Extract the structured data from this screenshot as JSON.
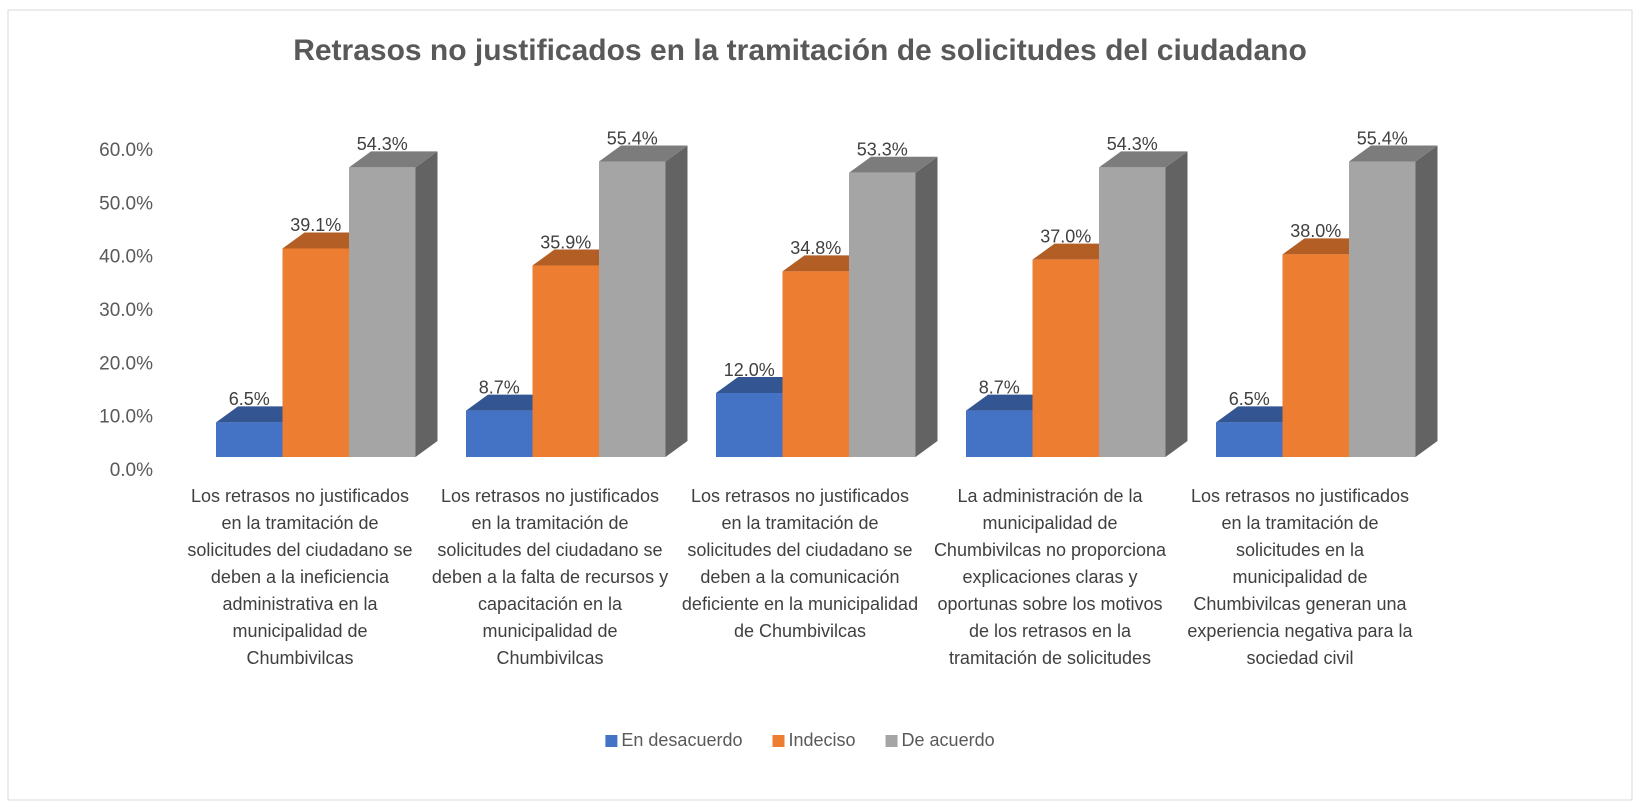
{
  "chart_data": {
    "type": "bar3d",
    "title": "Retrasos no justificados en la tramitación de solicitudes del ciudadano",
    "categories": [
      "Los retrasos no justificados en la tramitación de solicitudes del ciudadano se deben a la ineficiencia administrativa en la municipalidad de Chumbivilcas",
      "Los retrasos no justificados en la tramitación de solicitudes del ciudadano se deben a la falta de recursos y capacitación en la municipalidad de Chumbivilcas",
      "Los retrasos no justificados en la tramitación de solicitudes del ciudadano se deben a la comunicación deficiente en la municipalidad de Chumbivilcas",
      "La administración de la municipalidad de Chumbivilcas no proporciona explicaciones claras y oportunas sobre los motivos de los retrasos en la tramitación de solicitudes",
      "Los retrasos no justificados en la tramitación de solicitudes en la municipalidad de Chumbivilcas generan una experiencia negativa para la sociedad civil"
    ],
    "series": [
      {
        "name": "En desacuerdo",
        "color": "#4472c4",
        "values": [
          6.5,
          8.7,
          12.0,
          8.7,
          6.5
        ],
        "value_labels": [
          "6.5%",
          "8.7%",
          "12.0%",
          "8.7%",
          "6.5%"
        ]
      },
      {
        "name": "Indeciso",
        "color": "#ed7d31",
        "values": [
          39.1,
          35.9,
          34.8,
          37.0,
          38.0
        ],
        "value_labels": [
          "39.1%",
          "35.9%",
          "34.8%",
          "37.0%",
          "38.0%"
        ]
      },
      {
        "name": "De acuerdo",
        "color": "#a5a5a5",
        "values": [
          54.3,
          55.4,
          53.3,
          54.3,
          55.4
        ],
        "value_labels": [
          "54.3%",
          "55.4%",
          "53.3%",
          "54.3%",
          "55.4%"
        ]
      }
    ],
    "ylim": [
      0,
      60
    ],
    "yticks": [
      {
        "value": 0,
        "label": "0.0%"
      },
      {
        "value": 10,
        "label": "10.0%"
      },
      {
        "value": 20,
        "label": "20.0%"
      },
      {
        "value": 30,
        "label": "30.0%"
      },
      {
        "value": 40,
        "label": "40.0%"
      },
      {
        "value": 50,
        "label": "50.0%"
      },
      {
        "value": 60,
        "label": "60.0%"
      }
    ],
    "legend": "bottom"
  }
}
